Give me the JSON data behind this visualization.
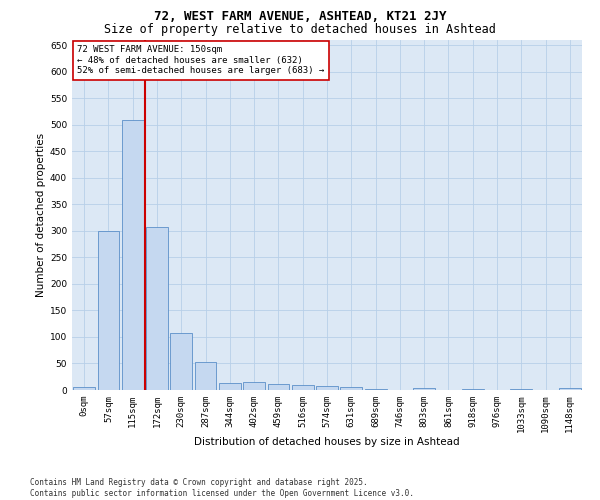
{
  "title": "72, WEST FARM AVENUE, ASHTEAD, KT21 2JY",
  "subtitle": "Size of property relative to detached houses in Ashtead",
  "xlabel": "Distribution of detached houses by size in Ashtead",
  "ylabel": "Number of detached properties",
  "bar_color": "#c5d8f0",
  "bar_edge_color": "#5b8fc9",
  "background_color": "#ffffff",
  "plot_bg_color": "#dce8f5",
  "grid_color": "#b8cfe8",
  "categories": [
    "0sqm",
    "57sqm",
    "115sqm",
    "172sqm",
    "230sqm",
    "287sqm",
    "344sqm",
    "402sqm",
    "459sqm",
    "516sqm",
    "574sqm",
    "631sqm",
    "689sqm",
    "746sqm",
    "803sqm",
    "861sqm",
    "918sqm",
    "976sqm",
    "1033sqm",
    "1090sqm",
    "1148sqm"
  ],
  "values": [
    5,
    300,
    510,
    308,
    107,
    53,
    14,
    15,
    12,
    9,
    7,
    6,
    1,
    0,
    4,
    0,
    1,
    0,
    1,
    0,
    4
  ],
  "ylim": [
    0,
    660
  ],
  "yticks": [
    0,
    50,
    100,
    150,
    200,
    250,
    300,
    350,
    400,
    450,
    500,
    550,
    600,
    650
  ],
  "property_line_x": 2.5,
  "annotation_text": "72 WEST FARM AVENUE: 150sqm\n← 48% of detached houses are smaller (632)\n52% of semi-detached houses are larger (683) →",
  "annotation_box_color": "#ffffff",
  "annotation_box_edge": "#cc0000",
  "vline_color": "#cc0000",
  "footer_text": "Contains HM Land Registry data © Crown copyright and database right 2025.\nContains public sector information licensed under the Open Government Licence v3.0.",
  "title_fontsize": 9,
  "subtitle_fontsize": 8.5,
  "label_fontsize": 7.5,
  "tick_fontsize": 6.5,
  "annotation_fontsize": 6.5,
  "footer_fontsize": 5.5
}
